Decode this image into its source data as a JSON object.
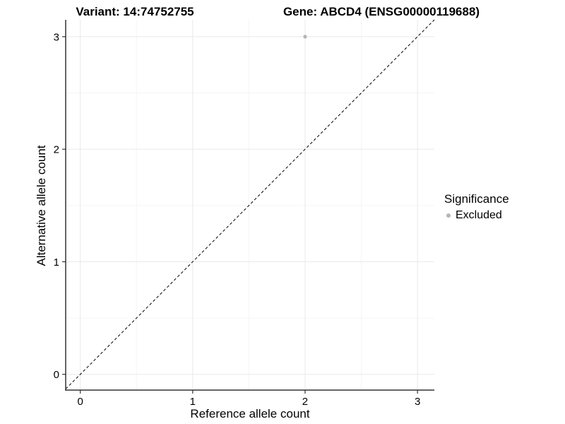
{
  "titles": {
    "variant": "Variant: 14:74752755",
    "gene": "Gene: ABCD4 (ENSG00000119688)"
  },
  "chart_data": {
    "type": "scatter",
    "title_left": "Variant: 14:74752755",
    "title_right": "Gene: ABCD4 (ENSG00000119688)",
    "xlabel": "Reference allele count",
    "ylabel": "Alternative allele count",
    "xlim": [
      -0.13,
      3.15
    ],
    "ylim": [
      -0.14,
      3.15
    ],
    "xticks": [
      0,
      1,
      2,
      3
    ],
    "yticks": [
      0,
      1,
      2,
      3
    ],
    "minor_xticks": [
      0.5,
      1.5,
      2.5
    ],
    "minor_yticks": [
      0.5,
      1.5,
      2.5
    ],
    "grid": "major and minor gridlines on white background",
    "legend_position": "right",
    "series": [
      {
        "name": "Excluded",
        "color": "#b5b5b5",
        "points": [
          {
            "x": 2,
            "y": 3
          }
        ]
      }
    ],
    "reference_line": {
      "equation": "y = x",
      "style": "dashed",
      "color": "#000000"
    }
  },
  "legend": {
    "title": "Significance",
    "items": [
      {
        "label": "Excluded",
        "color": "#b5b5b5"
      }
    ]
  },
  "colors": {
    "background": "#ffffff",
    "axis_line": "#333333",
    "tick_mark": "#333333",
    "text": "#000000",
    "grid_major": "#e9e9e9",
    "grid_minor": "#f5f5f5"
  }
}
